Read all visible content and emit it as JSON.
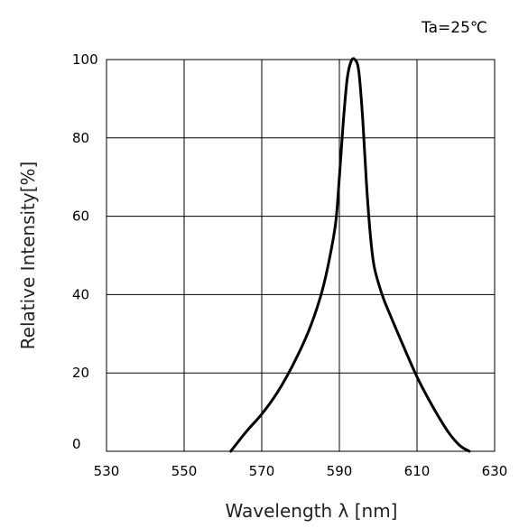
{
  "chart_data": {
    "type": "line",
    "title": "",
    "annotation": "Ta=25℃",
    "xlabel": "Wavelength λ [nm]",
    "ylabel": "Relative Intensity[%]",
    "xlim": [
      530,
      630
    ],
    "ylim": [
      0,
      100
    ],
    "xticks": [
      530,
      550,
      570,
      590,
      610,
      630
    ],
    "yticks": [
      0,
      20,
      40,
      60,
      80,
      100
    ],
    "grid": true,
    "series": [
      {
        "x": [
          562,
          566,
          570,
          574,
          578,
          582,
          585,
          587,
          589,
          590,
          591,
          592,
          593,
          594,
          595,
          596,
          597,
          598,
          599,
          601,
          603,
          606,
          610,
          614,
          618,
          621,
          623.5
        ],
        "y": [
          0,
          5,
          9.5,
          15,
          22,
          30.5,
          39,
          47,
          58,
          70,
          84,
          95,
          99.5,
          100,
          97,
          85,
          68,
          55,
          47,
          40,
          35,
          28,
          19,
          11.5,
          5,
          1.5,
          0
        ]
      }
    ]
  }
}
